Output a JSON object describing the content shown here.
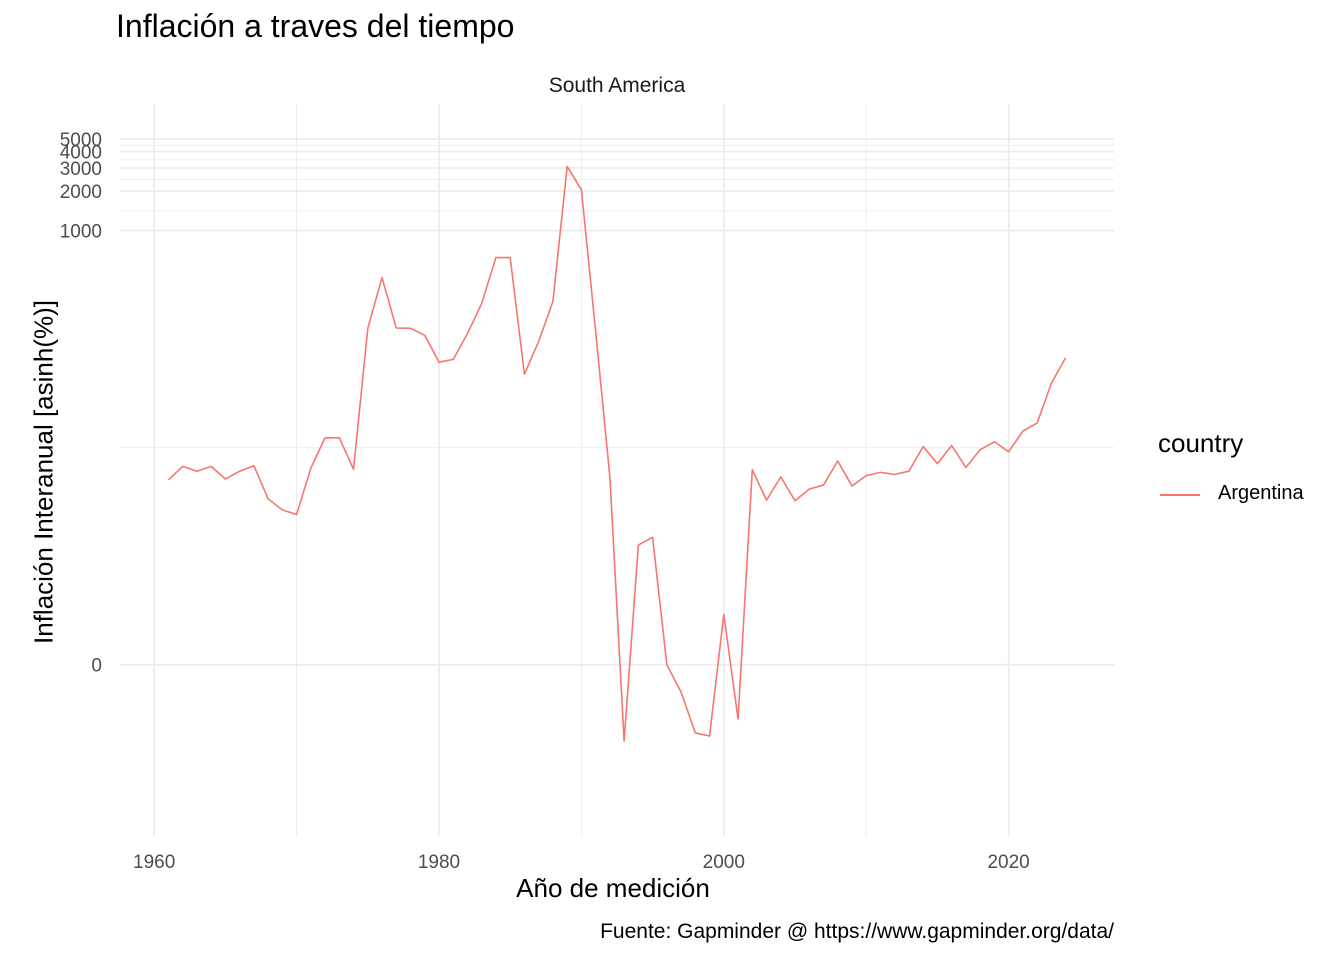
{
  "title": "Inflación a traves del tiempo",
  "facet_label": "South America",
  "caption": "Fuente: Gapminder @ https://www.gapminder.org/data/",
  "legend": {
    "title": "country",
    "entries": [
      "Argentina"
    ]
  },
  "colors": {
    "series": "#f8766d",
    "grid": "#ebebeb",
    "tick_text": "#4d4d4d"
  },
  "chart_data": {
    "type": "line",
    "title": "Inflación a traves del tiempo",
    "xlabel": "Año de medición",
    "ylabel": "Inflación Interanual [asinh(%)]",
    "y_scale": "asinh",
    "xlim": [
      1957.6,
      2027.4
    ],
    "ylim_asinh": [
      -3.0,
      9.82
    ],
    "x_ticks": [
      1960,
      1980,
      2000,
      2020
    ],
    "y_ticks": [
      0,
      1000,
      2000,
      3000,
      4000,
      5000
    ],
    "grid": true,
    "legend_position": "right",
    "series": [
      {
        "name": "Argentina",
        "x": [
          1961,
          1962,
          1963,
          1964,
          1965,
          1966,
          1967,
          1968,
          1969,
          1970,
          1971,
          1972,
          1973,
          1974,
          1975,
          1976,
          1977,
          1978,
          1979,
          1980,
          1981,
          1982,
          1983,
          1984,
          1985,
          1986,
          1987,
          1988,
          1989,
          1990,
          1991,
          1992,
          1993,
          1994,
          1995,
          1996,
          1997,
          1998,
          1999,
          2000,
          2001,
          2002,
          2003,
          2004,
          2005,
          2006,
          2007,
          2008,
          2009,
          2010,
          2011,
          2012,
          2013,
          2014,
          2015,
          2016,
          2017,
          2018,
          2019,
          2020,
          2021,
          2022,
          2023,
          2024
        ],
        "y": [
          12.7,
          16.1,
          14.8,
          16.1,
          12.9,
          14.8,
          16.3,
          9.1,
          7.5,
          6.9,
          15.6,
          26.6,
          26.6,
          15.3,
          181,
          440,
          182,
          181,
          160,
          100,
          105,
          165,
          280,
          625,
          625,
          81,
          144,
          290,
          3080,
          2050,
          172,
          13.4,
          -1.77,
          4.0,
          4.6,
          0.0,
          -0.5,
          -1.5,
          -1.6,
          1.0,
          -1.1,
          15.2,
          8.9,
          13.4,
          8.8,
          10.8,
          11.6,
          17.7,
          11.4,
          13.7,
          14.5,
          14.0,
          14.8,
          22.8,
          16.9,
          23.2,
          15.8,
          21.6,
          24.8,
          20.8,
          29.9,
          34.4,
          69.0,
          108
        ]
      }
    ]
  }
}
